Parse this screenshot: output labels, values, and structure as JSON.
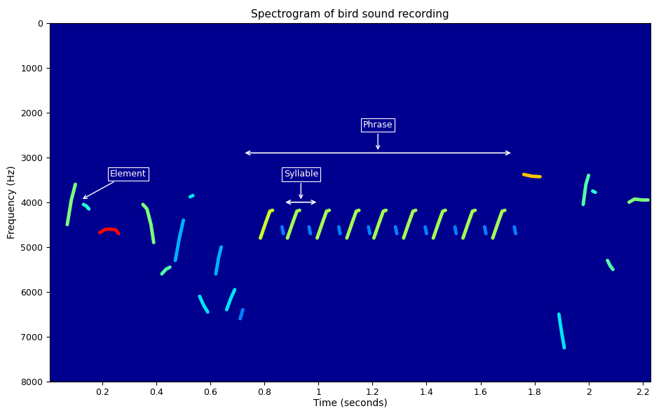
{
  "chart_data": {
    "type": "spectrogram",
    "title": "Spectrogram of bird sound recording",
    "x_label": "Time (seconds)",
    "y_label": "Frequency (Hz)",
    "xlim": [
      0.005,
      2.23
    ],
    "ylim": [
      8000,
      0
    ],
    "xticks": [
      0.2,
      0.4,
      0.6,
      0.8,
      1,
      1.2,
      1.4,
      1.6,
      1.8,
      2,
      2.2
    ],
    "yticks": [
      0,
      1000,
      2000,
      3000,
      4000,
      5000,
      6000,
      7000,
      8000
    ],
    "grid": false,
    "elements": [
      {
        "time": [
          0.07,
          0.085,
          0.1
        ],
        "frequency": [
          4500,
          3950,
          3600
        ],
        "level": 0.5
      },
      {
        "time": [
          0.13,
          0.14,
          0.15
        ],
        "frequency": [
          4050,
          4080,
          4150
        ],
        "level": 0.4
      },
      {
        "time": [
          0.19,
          0.21,
          0.23,
          0.25,
          0.26
        ],
        "frequency": [
          4680,
          4610,
          4600,
          4620,
          4700
        ],
        "level": 0.9
      },
      {
        "time": [
          0.35,
          0.365,
          0.38,
          0.39
        ],
        "frequency": [
          4050,
          4150,
          4500,
          4900
        ],
        "level": 0.5
      },
      {
        "time": [
          0.42,
          0.435,
          0.45
        ],
        "frequency": [
          5600,
          5500,
          5450
        ],
        "level": 0.45
      },
      {
        "time": [
          0.47,
          0.485,
          0.5
        ],
        "frequency": [
          5300,
          4800,
          4400
        ],
        "level": 0.3
      },
      {
        "time": [
          0.525,
          0.535
        ],
        "frequency": [
          3880,
          3850
        ],
        "level": 0.35
      },
      {
        "time": [
          0.56,
          0.575,
          0.59
        ],
        "frequency": [
          6100,
          6300,
          6450
        ],
        "level": 0.35
      },
      {
        "time": [
          0.62,
          0.63,
          0.64
        ],
        "frequency": [
          5600,
          5250,
          5000
        ],
        "level": 0.3
      },
      {
        "time": [
          0.66,
          0.675,
          0.69
        ],
        "frequency": [
          6400,
          6150,
          5950
        ],
        "level": 0.35
      },
      {
        "time": [
          0.71,
          0.72
        ],
        "frequency": [
          6600,
          6400
        ],
        "level": 0.25
      },
      {
        "time": [
          0.785,
          0.805,
          0.82,
          0.83
        ],
        "frequency": [
          4800,
          4450,
          4200,
          4180
        ],
        "level": 0.6
      },
      {
        "time": [
          0.865,
          0.87
        ],
        "frequency": [
          4550,
          4700
        ],
        "level": 0.25
      },
      {
        "time": [
          0.885,
          0.905,
          0.92,
          0.93
        ],
        "frequency": [
          4800,
          4450,
          4200,
          4180
        ],
        "level": 0.55
      },
      {
        "time": [
          0.965,
          0.97
        ],
        "frequency": [
          4550,
          4700
        ],
        "level": 0.25
      },
      {
        "time": [
          0.995,
          1.015,
          1.03,
          1.04
        ],
        "frequency": [
          4800,
          4450,
          4200,
          4180
        ],
        "level": 0.55
      },
      {
        "time": [
          1.075,
          1.08
        ],
        "frequency": [
          4550,
          4700
        ],
        "level": 0.25
      },
      {
        "time": [
          1.105,
          1.125,
          1.14,
          1.15
        ],
        "frequency": [
          4800,
          4450,
          4200,
          4180
        ],
        "level": 0.55
      },
      {
        "time": [
          1.185,
          1.19
        ],
        "frequency": [
          4550,
          4700
        ],
        "level": 0.25
      },
      {
        "time": [
          1.205,
          1.225,
          1.24,
          1.25
        ],
        "frequency": [
          4800,
          4450,
          4200,
          4180
        ],
        "level": 0.55
      },
      {
        "time": [
          1.285,
          1.29
        ],
        "frequency": [
          4550,
          4700
        ],
        "level": 0.25
      },
      {
        "time": [
          1.315,
          1.335,
          1.35,
          1.36
        ],
        "frequency": [
          4800,
          4450,
          4200,
          4180
        ],
        "level": 0.55
      },
      {
        "time": [
          1.395,
          1.4
        ],
        "frequency": [
          4550,
          4700
        ],
        "level": 0.25
      },
      {
        "time": [
          1.425,
          1.445,
          1.46,
          1.47
        ],
        "frequency": [
          4800,
          4450,
          4200,
          4180
        ],
        "level": 0.55
      },
      {
        "time": [
          1.505,
          1.51
        ],
        "frequency": [
          4550,
          4700
        ],
        "level": 0.25
      },
      {
        "time": [
          1.535,
          1.555,
          1.57,
          1.58
        ],
        "frequency": [
          4800,
          4450,
          4200,
          4180
        ],
        "level": 0.55
      },
      {
        "time": [
          1.615,
          1.62
        ],
        "frequency": [
          4550,
          4700
        ],
        "level": 0.25
      },
      {
        "time": [
          1.645,
          1.665,
          1.68,
          1.69
        ],
        "frequency": [
          4800,
          4450,
          4200,
          4180
        ],
        "level": 0.55
      },
      {
        "time": [
          1.725,
          1.73
        ],
        "frequency": [
          4550,
          4700
        ],
        "level": 0.25
      },
      {
        "time": [
          1.76,
          1.79,
          1.82
        ],
        "frequency": [
          3380,
          3420,
          3430
        ],
        "level": 0.7
      },
      {
        "time": [
          1.89,
          1.9,
          1.91
        ],
        "frequency": [
          6500,
          6900,
          7250
        ],
        "level": 0.35
      },
      {
        "time": [
          1.98,
          1.99,
          2.0
        ],
        "frequency": [
          4050,
          3600,
          3400
        ],
        "level": 0.45
      },
      {
        "time": [
          2.015,
          2.025
        ],
        "frequency": [
          3750,
          3780
        ],
        "level": 0.4
      },
      {
        "time": [
          2.07,
          2.08,
          2.09
        ],
        "frequency": [
          5300,
          5420,
          5500
        ],
        "level": 0.45
      },
      {
        "time": [
          2.15,
          2.17,
          2.2,
          2.22
        ],
        "frequency": [
          4000,
          3930,
          3950,
          3950
        ],
        "level": 0.5
      }
    ],
    "annotations": [
      {
        "text": "Element",
        "time": 0.12,
        "frequency": 3950
      },
      {
        "text": "Syllable",
        "start": 0.87,
        "end": 1.0,
        "frequency": 4000
      },
      {
        "text": "Phrase",
        "start": 0.72,
        "end": 1.72,
        "frequency": 2900
      }
    ]
  }
}
